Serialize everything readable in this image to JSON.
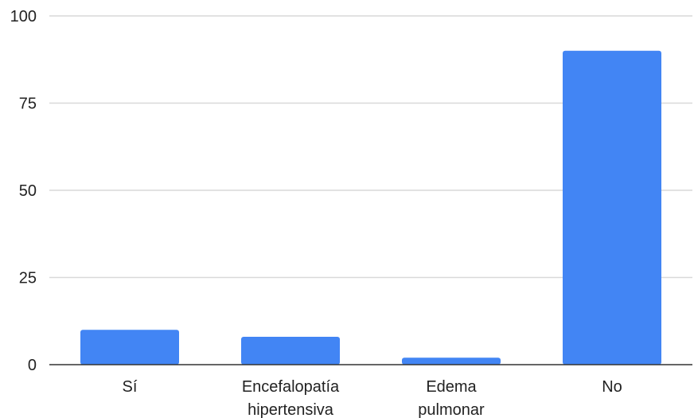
{
  "chart_data": {
    "type": "bar",
    "title": "",
    "xlabel": "",
    "ylabel": "",
    "ylim": [
      0,
      100
    ],
    "yticks": [
      0,
      25,
      50,
      75,
      100
    ],
    "grid": true,
    "legend": "none",
    "categories": [
      [
        "Sí"
      ],
      [
        "Encefalopatía",
        "hipertensiva"
      ],
      [
        "Edema",
        "pulmonar"
      ],
      [
        "No"
      ]
    ],
    "values": [
      10,
      8,
      2,
      90
    ],
    "colors": {
      "bar": "#4285f4"
    }
  }
}
